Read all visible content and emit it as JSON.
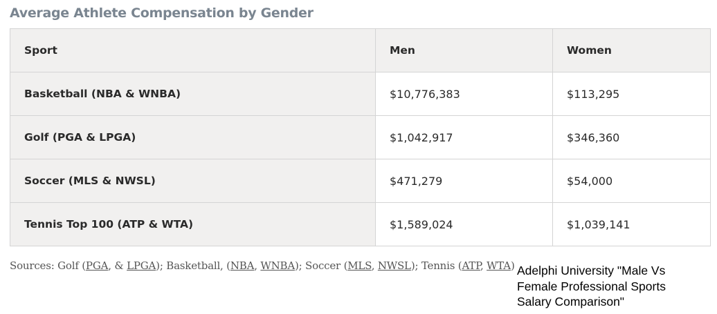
{
  "chart_data": {
    "type": "table",
    "title": "Average Athlete Compensation by Gender",
    "columns": [
      "Sport",
      "Men",
      "Women"
    ],
    "rows": [
      {
        "sport": "Basketball (NBA & WNBA)",
        "men": "$10,776,383",
        "women": "$113,295"
      },
      {
        "sport": "Golf (PGA & LPGA)",
        "men": "$1,042,917",
        "women": "$346,360"
      },
      {
        "sport": "Soccer (MLS & NWSL)",
        "men": "$471,279",
        "women": "$54,000"
      },
      {
        "sport": "Tennis Top 100 (ATP & WTA)",
        "men": "$1,589,024",
        "women": "$1,039,141"
      }
    ]
  },
  "sources": {
    "prefix": "Sources: Golf (",
    "pga": "PGA",
    "sep_golf": ", & ",
    "lpga": "LPGA",
    "basketball_label": "); Basketball, (",
    "nba": "NBA",
    "comma1": ", ",
    "wnba": "WNBA",
    "soccer_label": "); Soccer (",
    "mls": "MLS",
    "comma2": ", ",
    "nwsl": "NWSL",
    "tennis_label": "); Tennis (",
    "atp": "ATP",
    "comma3": ", ",
    "wta": "WTA",
    "suffix": ")"
  },
  "caption": "Adelphi University \"Male Vs Female Professional Sports Salary Comparison\""
}
